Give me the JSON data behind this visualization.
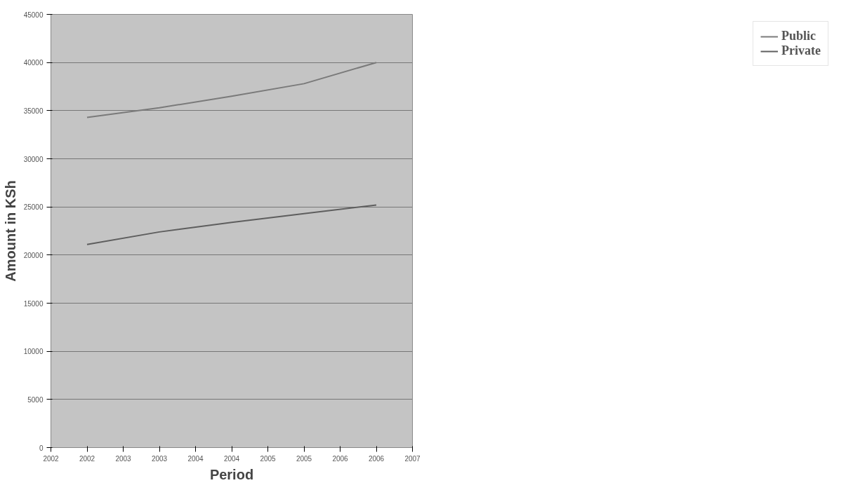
{
  "chart_data": {
    "type": "line",
    "xlabel": "Period",
    "ylabel": "Amount in KSh",
    "x": [
      2002,
      2003,
      2004,
      2005,
      2006
    ],
    "series": [
      {
        "name": "Public",
        "color": "#7a7a7a",
        "values": [
          34300,
          35300,
          36500,
          37800,
          40000
        ]
      },
      {
        "name": "Private",
        "color": "#5e5e5e",
        "values": [
          21100,
          22400,
          23400,
          24300,
          25200
        ]
      }
    ],
    "xlim": [
      2001.5,
      2006.5
    ],
    "xticks": [
      {
        "value": 2001.5,
        "label": "2002"
      },
      {
        "value": 2002,
        "label": "2002"
      },
      {
        "value": 2002.5,
        "label": "2003"
      },
      {
        "value": 2003,
        "label": "2003"
      },
      {
        "value": 2003.5,
        "label": "2004"
      },
      {
        "value": 2004,
        "label": "2004"
      },
      {
        "value": 2004.5,
        "label": "2005"
      },
      {
        "value": 2005,
        "label": "2005"
      },
      {
        "value": 2005.5,
        "label": "2006"
      },
      {
        "value": 2006,
        "label": "2006"
      },
      {
        "value": 2006.5,
        "label": "2007"
      }
    ],
    "ylim": [
      0,
      45000
    ],
    "yticks": [
      0,
      5000,
      10000,
      15000,
      20000,
      25000,
      30000,
      35000,
      40000,
      45000
    ],
    "grid": "y",
    "legend": "right",
    "marker": "none",
    "line_style": "solid"
  }
}
